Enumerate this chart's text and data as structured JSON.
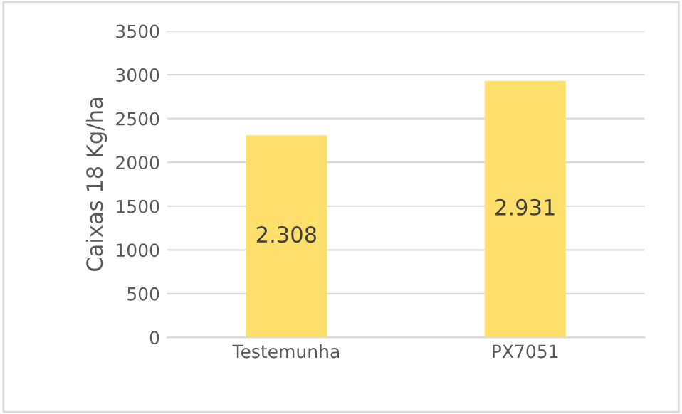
{
  "chart_data": {
    "type": "bar",
    "ylabel": "Caixas 18 Kg/ha",
    "categories": [
      "Testemunha",
      "PX7051"
    ],
    "values": [
      2308,
      2931
    ],
    "value_labels": [
      "2.308",
      "2.931"
    ],
    "color": "#ffdf6b",
    "ylim": [
      0,
      3500
    ],
    "yticks": [
      0,
      500,
      1000,
      1500,
      2000,
      2500,
      3000,
      3500
    ],
    "grid": "y"
  }
}
